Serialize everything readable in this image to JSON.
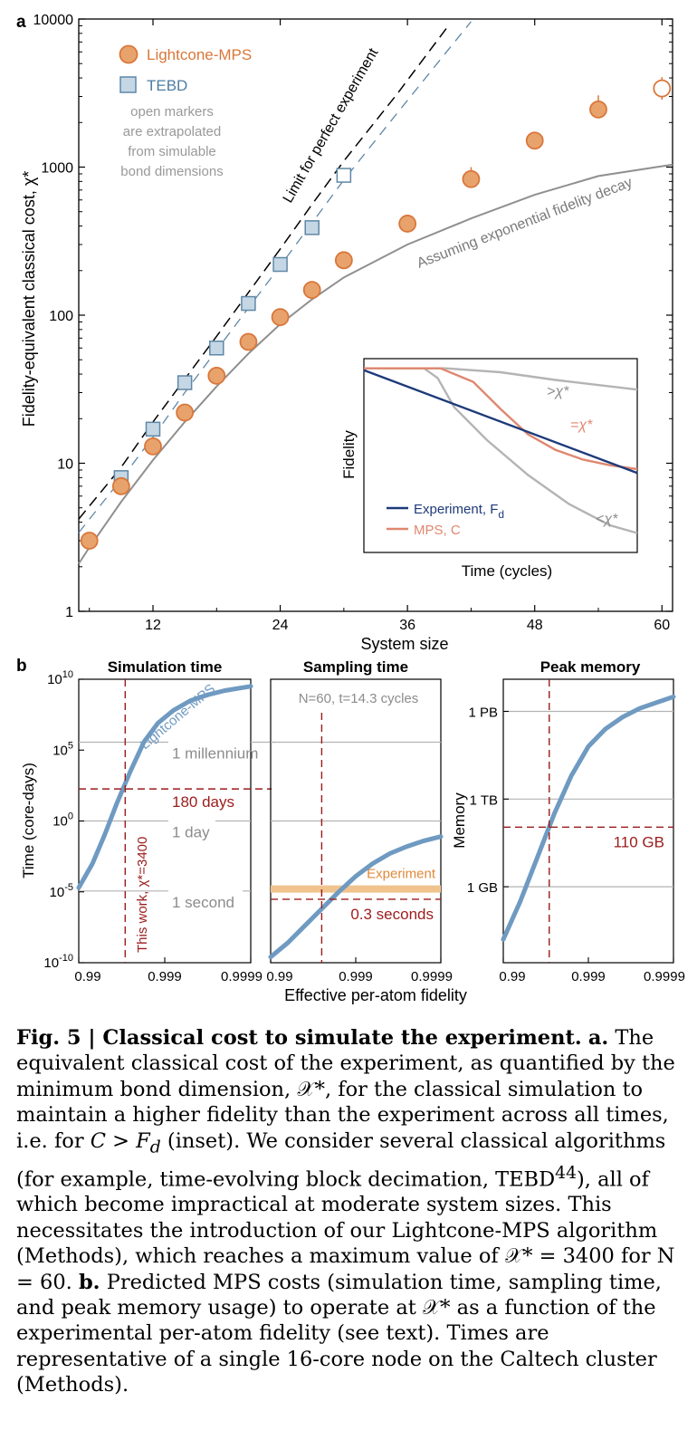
{
  "colors": {
    "mps": "#e8a36d",
    "mps_edge": "#d9773a",
    "mps_text": "#d9773a",
    "tebd": "#c5d7e5",
    "tebd_edge": "#5f87a6",
    "tebd_text": "#4f7ca0",
    "exp_fidelity": "#8f8f8f",
    "limit": "#000000",
    "note": "#999999",
    "inset_exp": "#1d3a7a",
    "inset_mps": "#e08770",
    "inset_gray": "#b4b4b4",
    "ref_line": "#b3b3b3",
    "ref_text": "#8c8c8c",
    "cutoff": "#9b1c1c",
    "mps_curve": "#6f9ac1",
    "experiment_band": "#f0c38e",
    "experiment_text": "#e08a3a"
  },
  "chart_data": [
    {
      "panel": "a",
      "panel_label": "a",
      "type": "scatter",
      "y_scale": "log",
      "xlabel": "System size",
      "ylabel": "Fidelity-equivalent classical cost, χ*",
      "xlim": [
        5,
        61
      ],
      "ylim": [
        1,
        10000
      ],
      "x_ticks": [
        12,
        24,
        36,
        48,
        60
      ],
      "x_tick_labels": [
        "12",
        "24",
        "36",
        "48",
        "60"
      ],
      "y_ticks": [
        1,
        10,
        100,
        1000,
        10000
      ],
      "y_tick_labels": [
        "1",
        "10",
        "100",
        "1000",
        "10000"
      ],
      "legend": {
        "mps": "Lightcone-MPS",
        "tebd": "TEBD"
      },
      "note_lines": [
        "open markers",
        "are extrapolated",
        "from simulable",
        "bond dimensions"
      ],
      "series": [
        {
          "name": "Lightcone-MPS",
          "marker": "circle",
          "x": [
            6,
            9,
            12,
            15,
            18,
            21,
            24,
            27,
            30,
            36,
            42,
            48,
            54,
            60
          ],
          "y": [
            3,
            7,
            13,
            22,
            39,
            66,
            97,
            148,
            235,
            415,
            830,
            1510,
            2450,
            3400
          ],
          "open": [
            false,
            false,
            false,
            false,
            false,
            false,
            false,
            false,
            false,
            false,
            false,
            false,
            false,
            true
          ],
          "error_upper": [
            null,
            null,
            null,
            null,
            null,
            null,
            null,
            null,
            null,
            null,
            1000,
            null,
            3050,
            4050
          ],
          "error_lower": [
            null,
            null,
            null,
            null,
            null,
            null,
            null,
            null,
            null,
            null,
            null,
            null,
            null,
            2850
          ]
        },
        {
          "name": "TEBD",
          "marker": "square",
          "x": [
            9,
            12,
            15,
            18,
            21,
            24,
            27,
            30
          ],
          "y": [
            8,
            17,
            35,
            60,
            120,
            220,
            390,
            880
          ],
          "open": [
            false,
            false,
            false,
            false,
            false,
            false,
            false,
            true
          ]
        },
        {
          "name": "Limit for perfect experiment",
          "type": "line",
          "style": "dashed",
          "x": [
            5,
            9,
            12,
            15,
            18,
            21,
            24,
            27,
            30,
            35,
            40
          ],
          "y": [
            4.2,
            9.4,
            19,
            37,
            72,
            142,
            280,
            560,
            1100,
            3100,
            9300
          ]
        },
        {
          "name": "TEBD extrapolation",
          "type": "line",
          "style": "dashed",
          "x": [
            5,
            9,
            12,
            15,
            18,
            21,
            24,
            27,
            30,
            35,
            40,
            42
          ],
          "y": [
            3.4,
            7.8,
            15,
            30,
            58,
            112,
            215,
            420,
            820,
            2300,
            6400,
            9600
          ]
        },
        {
          "name": "Assuming exponential fidelity decay",
          "type": "line",
          "style": "solid",
          "x": [
            5,
            6,
            9,
            12,
            15,
            18,
            21,
            24,
            27,
            30,
            36,
            42,
            48,
            54,
            61
          ],
          "y": [
            2.1,
            2.7,
            5.5,
            10.5,
            19,
            33,
            55,
            87,
            128,
            180,
            300,
            450,
            650,
            870,
            1040
          ]
        }
      ],
      "annotations": {
        "limit_label": "Limit for perfect experiment",
        "decay_label": "Assuming exponential fidelity decay"
      }
    },
    {
      "panel": "a-inset",
      "type": "line",
      "xlabel": "Time (cycles)",
      "ylabel": "Fidelity",
      "legend": [
        "Experiment, F",
        "MPS, C"
      ],
      "legend_subscript": "d",
      "series": [
        {
          "name": "Experiment, Fd",
          "x": [
            0,
            1
          ],
          "y": [
            0.94,
            0.41
          ]
        },
        {
          "name": "MPS, C (=χ*)",
          "x": [
            0,
            0.28,
            0.4,
            0.5,
            0.6,
            0.7,
            0.8,
            0.9,
            1
          ],
          "y": [
            0.95,
            0.95,
            0.88,
            0.74,
            0.61,
            0.53,
            0.48,
            0.45,
            0.43
          ]
        },
        {
          "name": ">χ*",
          "x": [
            0,
            0.3,
            0.5,
            0.7,
            1
          ],
          "y": [
            0.95,
            0.95,
            0.93,
            0.89,
            0.84
          ]
        },
        {
          "name": "<χ*",
          "x": [
            0,
            0.22,
            0.27,
            0.33,
            0.45,
            0.6,
            0.75,
            0.9,
            1
          ],
          "y": [
            0.95,
            0.95,
            0.9,
            0.75,
            0.58,
            0.4,
            0.25,
            0.14,
            0.1
          ]
        }
      ],
      "labels": {
        "gt": ">χ*",
        "eq": "=χ*",
        "lt": "<χ*"
      }
    },
    {
      "panel": "b1",
      "panel_label": "b",
      "title": "Simulation time",
      "type": "line",
      "ylabel": "Time (core-days)",
      "y_scale": "log",
      "ylim_exp": [
        -10,
        10
      ],
      "y_tick_exps": [
        10,
        5,
        0,
        -5,
        -10
      ],
      "x_tick_labels": [
        "0.99",
        "0.999",
        "0.9999"
      ],
      "x_tick_pos": [
        0,
        0.5,
        1
      ],
      "curve_label": "Lightcone-MPS",
      "series": [
        {
          "name": "Lightcone-MPS",
          "x": [
            0,
            0.08,
            0.15,
            0.22,
            0.3,
            0.38,
            0.46,
            0.55,
            0.65,
            0.75,
            0.85,
            1
          ],
          "y_exp": [
            -4.7,
            -3.0,
            -1.0,
            1.2,
            3.5,
            5.6,
            6.9,
            7.8,
            8.5,
            8.9,
            9.2,
            9.5
          ]
        }
      ],
      "references": [
        {
          "label": "1 millennium",
          "y_exp": 5.56
        },
        {
          "label": "1 day",
          "y_exp": 0
        },
        {
          "label": "1 second",
          "y_exp": -4.94
        }
      ],
      "cutoff": {
        "x": 0.27,
        "y_exp": 2.26,
        "label": "180 days"
      },
      "vertical_label": "This work, χ*=3400"
    },
    {
      "panel": "b2",
      "title": "Sampling time",
      "type": "line",
      "y_scale": "log",
      "ylim_exp": [
        -10,
        10
      ],
      "x_tick_labels": [
        "0.99",
        "0.999",
        "0.9999"
      ],
      "x_tick_pos": [
        0,
        0.5,
        1
      ],
      "subtitle": "N=60, t=14.3 cycles",
      "experiment_label": "Experiment",
      "experiment_y_exp": -4.8,
      "series": [
        {
          "name": "Lightcone-MPS",
          "x": [
            0,
            0.1,
            0.2,
            0.3,
            0.4,
            0.5,
            0.6,
            0.7,
            0.8,
            0.9,
            1
          ],
          "y_exp": [
            -9.6,
            -8.6,
            -7.4,
            -6.2,
            -5.0,
            -3.9,
            -3.0,
            -2.3,
            -1.8,
            -1.4,
            -1.1
          ]
        }
      ],
      "references": [
        {
          "y_exp": 5.56
        },
        {
          "y_exp": 0
        },
        {
          "y_exp": -4.94
        }
      ],
      "cutoff": {
        "x": 0.3,
        "y_exp": -5.52,
        "label": "0.3 seconds"
      }
    },
    {
      "panel": "b3",
      "title": "Peak memory",
      "type": "line",
      "ylabel": "Memory",
      "y_scale": "log",
      "x_tick_labels": [
        "0.99",
        "0.999",
        "0.9999"
      ],
      "x_tick_pos": [
        0,
        0.5,
        1
      ],
      "references": [
        {
          "label": "1 PB",
          "bytes_exp": 15
        },
        {
          "label": "1 TB",
          "bytes_exp": 12
        },
        {
          "label": "1 GB",
          "bytes_exp": 9
        }
      ],
      "series": [
        {
          "name": "Lightcone-MPS",
          "x": [
            0,
            0.1,
            0.2,
            0.3,
            0.4,
            0.5,
            0.6,
            0.7,
            0.8,
            0.9,
            1
          ],
          "bytes_exp": [
            7.2,
            8.5,
            10.0,
            11.5,
            12.8,
            13.8,
            14.4,
            14.8,
            15.1,
            15.3,
            15.5
          ]
        }
      ],
      "cutoff": {
        "x": 0.27,
        "bytes_exp": 11.04,
        "label": "110 GB"
      }
    }
  ],
  "shared": {
    "b_xlabel": "Effective per-atom fidelity"
  },
  "caption": {
    "label": "Fig. 5 | Classical cost to simulate the experiment.",
    "a_label": "a.",
    "a_text": "The equivalent classical cost of the experiment, as quantified by the minimum bond dimension, 𝒳*, for the classical simulation to maintain a higher fidelity than the experiment across all times, i.e. for",
    "a_math": "C > F",
    "a_math_sub": "d",
    "a_text2": "(inset). We consider several classical algorithms (for example, time-evolving block decimation, TEBD",
    "a_ref": "44",
    "a_text3": "), all of which become impractical at moderate system sizes. This necessitates the introduction of our Lightcone-MPS algorithm (Methods), which reaches a maximum value of 𝒳* = 3400 for N = 60.",
    "b_label": "b.",
    "b_text": "Predicted MPS costs (simulation time, sampling time, and peak memory usage) to operate at 𝒳* as a function of the experimental per-atom fidelity (see text). Times are representative of a single 16-core node on the Caltech cluster (Methods)."
  }
}
